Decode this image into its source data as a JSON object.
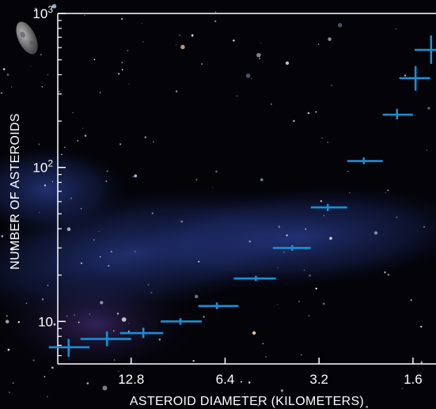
{
  "chart_data": {
    "type": "scatter",
    "title": "",
    "xlabel": "ASTEROID DIAMETER (KILOMETERS)",
    "ylabel": "NUMBER OF ASTEROIDS",
    "x_scale": "log-reversed",
    "y_scale": "log",
    "xlim": [
      22,
      1.35
    ],
    "ylim": [
      5.3,
      1000
    ],
    "x_ticks": [
      {
        "value": 12.8,
        "label": "12.8"
      },
      {
        "value": 6.4,
        "label": "6.4"
      },
      {
        "value": 3.2,
        "label": "3.2"
      },
      {
        "value": 1.6,
        "label": "1.6"
      }
    ],
    "y_ticks": [
      {
        "value": 10,
        "label": "10",
        "sup": ""
      },
      {
        "value": 100,
        "label": "10",
        "sup": "2"
      },
      {
        "value": 1000,
        "label": "10",
        "sup": "3"
      }
    ],
    "grid": false,
    "marker_color": "#1a8fd4",
    "points": [
      {
        "x": 20.3,
        "y": 6.8,
        "x_err": [
          23.5,
          17.4
        ],
        "y_err": [
          5.9,
          7.7
        ]
      },
      {
        "x": 15.3,
        "y": 7.7,
        "x_err": [
          18.6,
          12.8
        ],
        "y_err": [
          6.9,
          8.6
        ]
      },
      {
        "x": 11.7,
        "y": 8.4,
        "x_err": [
          13.9,
          10.1
        ],
        "y_err": [
          7.8,
          9.1
        ]
      },
      {
        "x": 8.9,
        "y": 10.0,
        "x_err": [
          10.3,
          7.6
        ],
        "y_err": [
          9.5,
          10.5
        ]
      },
      {
        "x": 6.8,
        "y": 12.6,
        "x_err": [
          7.8,
          5.8
        ],
        "y_err": [
          12.0,
          13.3
        ]
      },
      {
        "x": 5.1,
        "y": 19.0,
        "x_err": [
          6.0,
          4.4
        ],
        "y_err": [
          18.3,
          19.8
        ]
      },
      {
        "x": 3.9,
        "y": 30.0,
        "x_err": [
          4.5,
          3.4
        ],
        "y_err": [
          28.8,
          31.3
        ]
      },
      {
        "x": 3.0,
        "y": 55.0,
        "x_err": [
          3.4,
          2.6
        ],
        "y_err": [
          52.0,
          58.0
        ]
      },
      {
        "x": 2.3,
        "y": 110.0,
        "x_err": [
          2.6,
          2.0
        ],
        "y_err": [
          105.0,
          116.0
        ]
      },
      {
        "x": 1.8,
        "y": 220.0,
        "x_err": [
          2.0,
          1.6
        ],
        "y_err": [
          205.0,
          240.0
        ]
      },
      {
        "x": 1.57,
        "y": 380.0,
        "x_err": [
          1.77,
          1.41
        ],
        "y_err": [
          315.0,
          455.0
        ]
      },
      {
        "x": 1.4,
        "y": 580.0,
        "x_err": [
          1.58,
          1.3
        ],
        "y_err": [
          470.0,
          720.0
        ]
      }
    ]
  }
}
